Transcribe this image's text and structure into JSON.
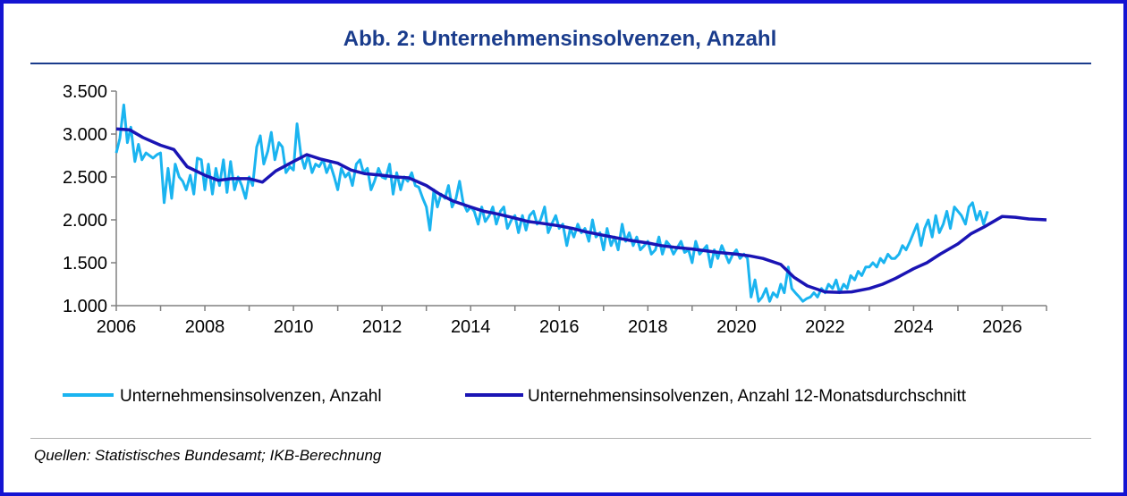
{
  "title": "Abb. 2: Unternehmensinsolvenzen, Anzahl",
  "source": "Quellen: Statistisches Bundesamt; IKB-Berechnung",
  "colors": {
    "frame": "#1414d2",
    "title": "#1a3c8c",
    "monthly": "#1ab4f0",
    "average": "#1a14b4"
  },
  "chart_data": {
    "type": "line",
    "xlim": [
      2006,
      2027
    ],
    "ylim": [
      1000,
      3500
    ],
    "x_tick_labels": [
      "2006",
      "2008",
      "2010",
      "2012",
      "2014",
      "2016",
      "2018",
      "2020",
      "2022",
      "2024",
      "2026"
    ],
    "y_tick_labels": [
      "3.500",
      "3.000",
      "2.500",
      "2.000",
      "1.500",
      "1.000"
    ],
    "legend_position": "bottom",
    "series": [
      {
        "name": "Unternehmensinsolvenzen, Anzahl",
        "color": "#1ab4f0",
        "x": [
          2006.0,
          2006.08,
          2006.17,
          2006.25,
          2006.33,
          2006.42,
          2006.5,
          2006.58,
          2006.67,
          2006.75,
          2006.83,
          2006.92,
          2007.0,
          2007.08,
          2007.17,
          2007.25,
          2007.33,
          2007.42,
          2007.5,
          2007.58,
          2007.67,
          2007.75,
          2007.83,
          2007.92,
          2008.0,
          2008.08,
          2008.17,
          2008.25,
          2008.33,
          2008.42,
          2008.5,
          2008.58,
          2008.67,
          2008.75,
          2008.83,
          2008.92,
          2009.0,
          2009.08,
          2009.17,
          2009.25,
          2009.33,
          2009.42,
          2009.5,
          2009.58,
          2009.67,
          2009.75,
          2009.83,
          2009.92,
          2010.0,
          2010.08,
          2010.17,
          2010.25,
          2010.33,
          2010.42,
          2010.5,
          2010.58,
          2010.67,
          2010.75,
          2010.83,
          2010.92,
          2011.0,
          2011.08,
          2011.17,
          2011.25,
          2011.33,
          2011.42,
          2011.5,
          2011.58,
          2011.67,
          2011.75,
          2011.83,
          2011.92,
          2012.0,
          2012.08,
          2012.17,
          2012.25,
          2012.33,
          2012.42,
          2012.5,
          2012.58,
          2012.67,
          2012.75,
          2012.83,
          2012.92,
          2013.0,
          2013.08,
          2013.17,
          2013.25,
          2013.33,
          2013.42,
          2013.5,
          2013.58,
          2013.67,
          2013.75,
          2013.83,
          2013.92,
          2014.0,
          2014.08,
          2014.17,
          2014.25,
          2014.33,
          2014.42,
          2014.5,
          2014.58,
          2014.67,
          2014.75,
          2014.83,
          2014.92,
          2015.0,
          2015.08,
          2015.17,
          2015.25,
          2015.33,
          2015.42,
          2015.5,
          2015.58,
          2015.67,
          2015.75,
          2015.83,
          2015.92,
          2016.0,
          2016.08,
          2016.17,
          2016.25,
          2016.33,
          2016.42,
          2016.5,
          2016.58,
          2016.67,
          2016.75,
          2016.83,
          2016.92,
          2017.0,
          2017.08,
          2017.17,
          2017.25,
          2017.33,
          2017.42,
          2017.5,
          2017.58,
          2017.67,
          2017.75,
          2017.83,
          2017.92,
          2018.0,
          2018.08,
          2018.17,
          2018.25,
          2018.33,
          2018.42,
          2018.5,
          2018.58,
          2018.67,
          2018.75,
          2018.83,
          2018.92,
          2019.0,
          2019.08,
          2019.17,
          2019.25,
          2019.33,
          2019.42,
          2019.5,
          2019.58,
          2019.67,
          2019.75,
          2019.83,
          2019.92,
          2020.0,
          2020.08,
          2020.17,
          2020.25,
          2020.33,
          2020.42,
          2020.5,
          2020.58,
          2020.67,
          2020.75,
          2020.83,
          2020.92,
          2021.0,
          2021.08,
          2021.17,
          2021.25,
          2021.33,
          2021.42,
          2021.5,
          2021.58,
          2021.67,
          2021.75,
          2021.83,
          2021.92,
          2022.0,
          2022.08,
          2022.17,
          2022.25,
          2022.33,
          2022.42,
          2022.5,
          2022.58,
          2022.67,
          2022.75,
          2022.83,
          2022.92,
          2023.0,
          2023.08,
          2023.17,
          2023.25,
          2023.33,
          2023.42,
          2023.5,
          2023.58,
          2023.67,
          2023.75,
          2023.83,
          2023.92,
          2024.0,
          2024.08,
          2024.17,
          2024.25,
          2024.33,
          2024.42,
          2024.5,
          2024.58,
          2024.67,
          2024.75,
          2024.83,
          2024.92,
          2025.0,
          2025.08,
          2025.17,
          2025.25,
          2025.33,
          2025.42,
          2025.5,
          2025.58,
          2025.67
        ],
        "y": [
          2780,
          2950,
          3340,
          2900,
          3080,
          2680,
          2880,
          2700,
          2780,
          2750,
          2720,
          2760,
          2780,
          2200,
          2600,
          2250,
          2650,
          2500,
          2450,
          2350,
          2520,
          2300,
          2720,
          2700,
          2350,
          2650,
          2300,
          2600,
          2400,
          2700,
          2320,
          2680,
          2350,
          2500,
          2400,
          2250,
          2500,
          2400,
          2850,
          2980,
          2650,
          2800,
          3020,
          2700,
          2900,
          2850,
          2550,
          2620,
          2580,
          3120,
          2750,
          2600,
          2750,
          2550,
          2650,
          2620,
          2700,
          2550,
          2650,
          2500,
          2350,
          2600,
          2500,
          2550,
          2400,
          2650,
          2700,
          2550,
          2600,
          2350,
          2450,
          2600,
          2500,
          2480,
          2650,
          2300,
          2550,
          2350,
          2500,
          2450,
          2550,
          2400,
          2380,
          2250,
          2150,
          1880,
          2350,
          2150,
          2300,
          2250,
          2400,
          2150,
          2250,
          2450,
          2200,
          2100,
          2150,
          2100,
          1950,
          2150,
          1980,
          2050,
          2150,
          1950,
          2100,
          2150,
          1900,
          2000,
          2050,
          1850,
          2050,
          1880,
          2050,
          2100,
          1950,
          2000,
          2150,
          1850,
          1950,
          2050,
          1900,
          1950,
          1700,
          1900,
          1800,
          1950,
          1850,
          1900,
          1750,
          2000,
          1800,
          1850,
          1650,
          1900,
          1700,
          1800,
          1650,
          1950,
          1750,
          1850,
          1700,
          1800,
          1650,
          1700,
          1750,
          1600,
          1650,
          1800,
          1600,
          1750,
          1700,
          1600,
          1680,
          1750,
          1620,
          1650,
          1500,
          1750,
          1600,
          1650,
          1700,
          1450,
          1650,
          1550,
          1700,
          1600,
          1500,
          1600,
          1650,
          1550,
          1600,
          1550,
          1100,
          1300,
          1050,
          1100,
          1200,
          1050,
          1150,
          1100,
          1250,
          1150,
          1450,
          1200,
          1150,
          1100,
          1050,
          1080,
          1100,
          1150,
          1100,
          1200,
          1150,
          1250,
          1200,
          1300,
          1150,
          1250,
          1200,
          1350,
          1300,
          1400,
          1350,
          1450,
          1450,
          1500,
          1450,
          1550,
          1500,
          1600,
          1550,
          1550,
          1600,
          1700,
          1650,
          1750,
          1850,
          1950,
          1700,
          1900,
          2000,
          1800,
          2050,
          1850,
          1950,
          2100,
          1900,
          2150,
          2100,
          2050,
          1950,
          2150,
          2200,
          2000,
          2100,
          1950,
          2100
        ]
      },
      {
        "name": "Unternehmensinsolvenzen, Anzahl 12-Monatsdurchschnitt",
        "color": "#1a14b4",
        "x": [
          2006.0,
          2006.3,
          2006.6,
          2007.0,
          2007.3,
          2007.6,
          2008.0,
          2008.3,
          2008.6,
          2009.0,
          2009.3,
          2009.6,
          2010.0,
          2010.3,
          2010.6,
          2011.0,
          2011.3,
          2011.6,
          2012.0,
          2012.3,
          2012.6,
          2013.0,
          2013.3,
          2013.6,
          2014.0,
          2014.3,
          2014.6,
          2015.0,
          2015.3,
          2015.6,
          2016.0,
          2016.3,
          2016.6,
          2017.0,
          2017.3,
          2017.6,
          2018.0,
          2018.3,
          2018.6,
          2019.0,
          2019.3,
          2019.6,
          2020.0,
          2020.3,
          2020.6,
          2021.0,
          2021.3,
          2021.6,
          2022.0,
          2022.3,
          2022.6,
          2023.0,
          2023.3,
          2023.6,
          2024.0,
          2024.3,
          2024.6,
          2025.0,
          2025.3,
          2025.6,
          2026.0,
          2026.3,
          2026.6,
          2027.0
        ],
        "y": [
          3060,
          3050,
          2960,
          2870,
          2820,
          2620,
          2520,
          2460,
          2480,
          2480,
          2440,
          2570,
          2680,
          2760,
          2710,
          2660,
          2580,
          2540,
          2520,
          2500,
          2490,
          2400,
          2300,
          2220,
          2150,
          2100,
          2070,
          2020,
          1980,
          1960,
          1930,
          1900,
          1860,
          1820,
          1790,
          1760,
          1730,
          1700,
          1680,
          1660,
          1640,
          1620,
          1600,
          1580,
          1550,
          1480,
          1330,
          1230,
          1160,
          1155,
          1160,
          1200,
          1250,
          1320,
          1430,
          1500,
          1600,
          1720,
          1840,
          1920,
          2040,
          2030,
          2010,
          2000
        ]
      }
    ]
  }
}
